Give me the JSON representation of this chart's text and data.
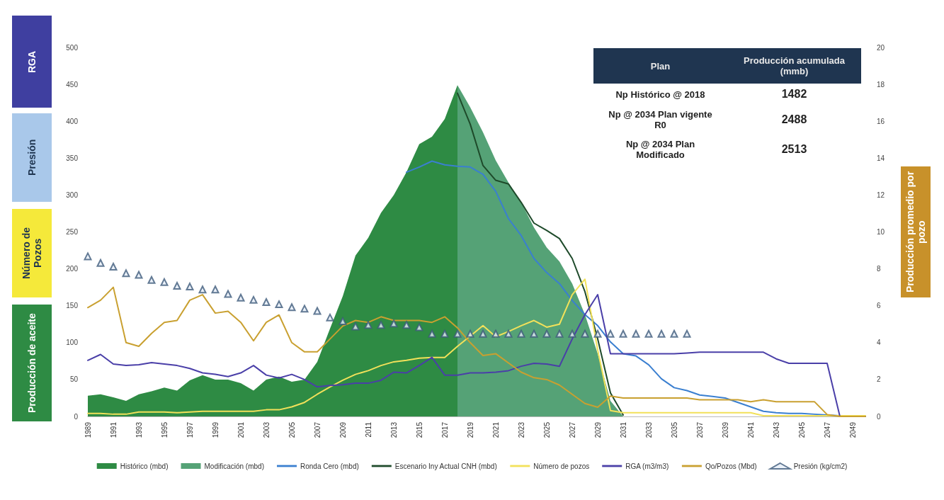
{
  "chart_data": {
    "type": "line",
    "ylabel": "Producción de aceite",
    "y2label": "Producción promedio por pozo",
    "annotations": [
      "RGA",
      "Presión",
      "Número de Pozos",
      "Plan",
      "Producción acumulada (mmb)",
      "Np Histórico @ 2018",
      "1482",
      "Np @ 2034 Plan vigente R0",
      "2488",
      "Np @ 2034 Plan Modificado",
      "2513"
    ],
    "categories": [
      "1989",
      null,
      "1991",
      null,
      "1993",
      null,
      "1995",
      null,
      "1997",
      null,
      "1999",
      null,
      "2001",
      null,
      "2003",
      null,
      "2005",
      null,
      "2007",
      null,
      "2009",
      null,
      "2011",
      null,
      "2013",
      null,
      "2015",
      null,
      "2017",
      null,
      "2019",
      null,
      "2021",
      null,
      "2023",
      null,
      "2025",
      null,
      "2027",
      null,
      "2029",
      null,
      "2031",
      null,
      "2033",
      null,
      "2035",
      null,
      "2037",
      null,
      "2039",
      null,
      "2041",
      null,
      "2043",
      null,
      "2045",
      null,
      "2047",
      null,
      "2049",
      null
    ],
    "ylim": [
      0,
      500
    ],
    "yticks": [
      0,
      50,
      100,
      150,
      200,
      250,
      300,
      350,
      400,
      450,
      500
    ],
    "y2lim": [
      0,
      20
    ],
    "y2ticks": [
      0,
      2,
      4,
      6,
      8,
      10,
      12,
      14,
      16,
      18,
      20
    ],
    "legend": "bottom",
    "grid": false,
    "series": [
      {
        "name": "Histórico (mbd)",
        "type": "area",
        "color": "#2e8b44",
        "values": [
          28,
          30,
          26,
          21,
          30,
          34,
          39,
          35,
          49,
          56,
          50,
          50,
          45,
          35,
          50,
          54,
          47,
          50,
          74,
          119,
          163,
          218,
          242,
          276,
          300,
          331,
          369,
          379,
          403,
          449,
          null,
          null,
          null,
          null,
          null,
          null,
          null,
          null,
          null,
          null,
          null,
          null,
          null,
          null,
          null,
          null,
          null,
          null,
          null,
          null,
          null,
          null,
          null,
          null,
          null,
          null,
          null,
          null,
          null,
          null,
          null,
          null
        ]
      },
      {
        "name": "Modificación (mbd)",
        "type": "area",
        "color": "#55a276",
        "values": [
          null,
          null,
          null,
          null,
          null,
          null,
          null,
          null,
          null,
          null,
          null,
          null,
          null,
          null,
          null,
          null,
          null,
          null,
          null,
          null,
          null,
          null,
          null,
          null,
          null,
          null,
          null,
          null,
          null,
          449,
          419,
          385,
          347,
          317,
          290,
          256,
          229,
          210,
          180,
          138,
          85,
          21,
          0,
          null,
          null,
          null,
          null,
          null,
          null,
          null,
          null,
          null,
          null,
          null,
          null,
          null,
          null,
          null,
          null,
          null,
          null,
          null
        ]
      },
      {
        "name": "Ronda Cero (mbd)",
        "type": "line",
        "color": "#3a7fd0",
        "values": [
          null,
          null,
          null,
          null,
          null,
          null,
          null,
          null,
          null,
          null,
          null,
          null,
          null,
          null,
          null,
          null,
          null,
          null,
          null,
          null,
          null,
          null,
          null,
          null,
          null,
          331,
          338,
          346,
          341,
          339,
          338,
          328,
          305,
          268,
          245,
          214,
          195,
          180,
          157,
          138,
          123,
          101,
          85,
          82,
          70,
          51,
          39,
          35,
          29,
          27,
          25,
          19,
          13,
          7,
          5,
          4,
          4,
          3,
          2,
          1,
          null,
          null
        ]
      },
      {
        "name": "Escenario Iny Actual CNH (mbd)",
        "type": "line",
        "color": "#1e4a2a",
        "values": [
          null,
          null,
          null,
          null,
          null,
          null,
          null,
          null,
          null,
          null,
          null,
          null,
          null,
          null,
          null,
          null,
          null,
          null,
          null,
          null,
          null,
          null,
          null,
          null,
          null,
          null,
          null,
          null,
          null,
          438,
          396,
          340,
          320,
          315,
          290,
          262,
          252,
          241,
          214,
          169,
          105,
          32,
          2,
          null,
          null,
          null,
          null,
          null,
          null,
          null,
          null,
          null,
          null,
          null,
          null,
          null,
          null,
          null,
          null,
          null,
          null,
          null
        ]
      },
      {
        "name": "Número de pozos",
        "type": "line",
        "color": "#f2e15a",
        "values": [
          4,
          4,
          3,
          3,
          6,
          6,
          6,
          5,
          6,
          7,
          7,
          7,
          7,
          7,
          9,
          9,
          13,
          19,
          30,
          40,
          49,
          57,
          62,
          69,
          74,
          76,
          79,
          80,
          80,
          95,
          109,
          123,
          108,
          115,
          123,
          130,
          121,
          125,
          165,
          186,
          90,
          8,
          5,
          5,
          5,
          5,
          5,
          5,
          5,
          5,
          5,
          5,
          5,
          1,
          1,
          1,
          1,
          1,
          1,
          1,
          1,
          1
        ]
      },
      {
        "name": "RGA (m3/m3)",
        "type": "line",
        "color": "#4a3fa8",
        "values": [
          76,
          84,
          71,
          69,
          70,
          73,
          71,
          69,
          65,
          59,
          57,
          54,
          59,
          69,
          56,
          52,
          57,
          50,
          40,
          42,
          43,
          45,
          45,
          49,
          60,
          59,
          69,
          80,
          56,
          56,
          59,
          59,
          60,
          62,
          68,
          72,
          71,
          68,
          105,
          138,
          165,
          85,
          85,
          85,
          85,
          85,
          85,
          86,
          87,
          87,
          87,
          87,
          87,
          87,
          78,
          72,
          72,
          72,
          72,
          0,
          0,
          0
        ]
      },
      {
        "name": "Qo/Pozos (Mbd)",
        "type": "line",
        "axis": "y2",
        "color": "#c9a030",
        "values": [
          5.9,
          6.3,
          7.0,
          4.0,
          3.8,
          4.5,
          5.1,
          5.2,
          6.3,
          6.6,
          5.6,
          5.7,
          5.1,
          4.1,
          5.1,
          5.5,
          4.0,
          3.5,
          3.5,
          4.2,
          4.9,
          5.2,
          5.1,
          5.4,
          5.2,
          5.2,
          5.2,
          5.1,
          5.4,
          4.8,
          4.0,
          3.3,
          3.4,
          2.9,
          2.4,
          2.1,
          2.0,
          1.7,
          1.2,
          0.7,
          0.5,
          1.1,
          1.0,
          1.0,
          1.0,
          1.0,
          1.0,
          1.0,
          0.9,
          0.9,
          0.9,
          0.9,
          0.8,
          0.9,
          0.8,
          0.8,
          0.8,
          0.8,
          0.1,
          0,
          0,
          0
        ]
      },
      {
        "name": "Presión (kg/cm2)",
        "type": "scatter",
        "marker": "triangle",
        "color": "#3d5a7a",
        "values": [
          217,
          208,
          203,
          194,
          192,
          185,
          182,
          177,
          176,
          172,
          172,
          166,
          161,
          158,
          155,
          152,
          148,
          146,
          143,
          134,
          129,
          122,
          124,
          124,
          126,
          124,
          121,
          112,
          112,
          112,
          112,
          112,
          112,
          112,
          112,
          112,
          112,
          112,
          112,
          112,
          112,
          112,
          112,
          112,
          112,
          112,
          112,
          112,
          null,
          null,
          null,
          null,
          null,
          null,
          null,
          null,
          null,
          null,
          null,
          null,
          null,
          null
        ]
      }
    ]
  }
}
